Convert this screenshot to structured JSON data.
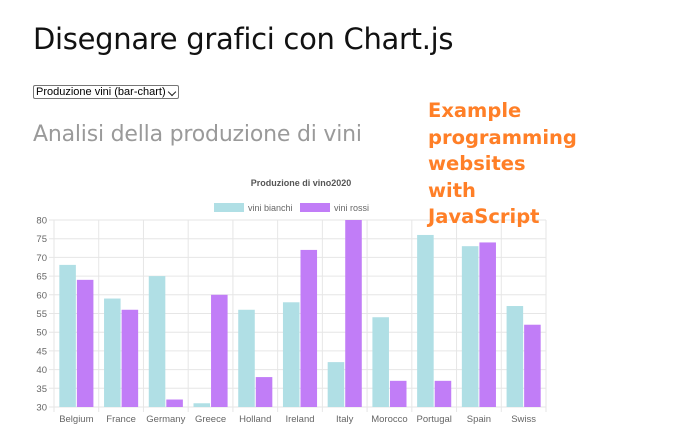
{
  "page": {
    "title": "Disegnare grafici con Chart.js",
    "section_title": "Analisi della produzione di vini",
    "overlay_lines": [
      "Example",
      "programming",
      "websites",
      "with",
      "JavaScript"
    ]
  },
  "select": {
    "selected": "Produzione vini (bar-chart)",
    "icon": "chevron-down-icon"
  },
  "colors": {
    "series_bianchi": "#b0dfe5",
    "series_rossi": "#c17df7",
    "overlay": "#ff7f27",
    "grid": "#e6e6e6"
  },
  "chart_data": {
    "type": "bar",
    "title": "Produzione di vino2020",
    "categories": [
      "Belgium",
      "France",
      "Germany",
      "Greece",
      "Holland",
      "Ireland",
      "Italy",
      "Morocco",
      "Portugal",
      "Spain",
      "Swiss"
    ],
    "series": [
      {
        "name": "vini bianchi",
        "values": [
          68,
          59,
          65,
          31,
          56,
          58,
          42,
          54,
          76,
          73,
          57
        ]
      },
      {
        "name": "vini rossi",
        "values": [
          64,
          56,
          32,
          60,
          38,
          72,
          80,
          37,
          37,
          74,
          52
        ]
      }
    ],
    "yticks": [
      "80",
      "75",
      "70",
      "65",
      "60",
      "55",
      "50",
      "45",
      "40",
      "35",
      "30"
    ],
    "ylim": [
      30,
      80
    ],
    "grid": true,
    "legend_position": "top"
  }
}
